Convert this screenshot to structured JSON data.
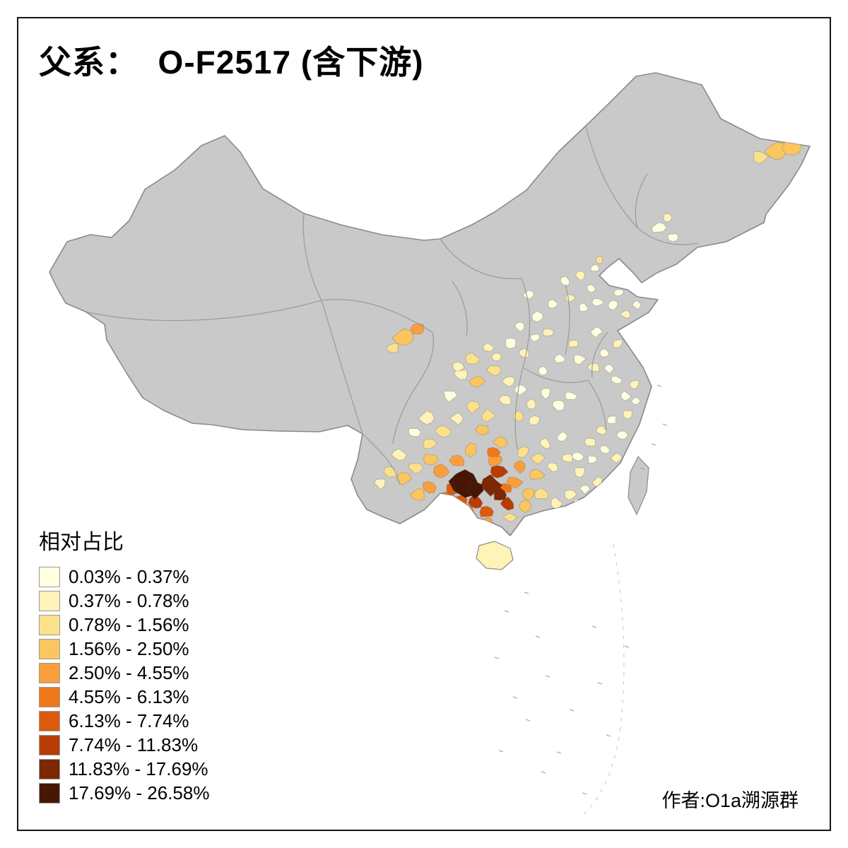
{
  "title": "父系：  O-F2517 (含下游)",
  "legend": {
    "title": "相对占比",
    "items": [
      {
        "label": "0.03% - 0.37%",
        "color": "#FFFFE0"
      },
      {
        "label": "0.37% - 0.78%",
        "color": "#FFF3B8"
      },
      {
        "label": "0.78% - 1.56%",
        "color": "#FCE18C"
      },
      {
        "label": "1.56% - 2.50%",
        "color": "#FBC55F"
      },
      {
        "label": "2.50% - 4.55%",
        "color": "#FA9E3C"
      },
      {
        "label": "4.55% - 6.13%",
        "color": "#F07818"
      },
      {
        "label": "6.13% - 7.74%",
        "color": "#DC5A0B"
      },
      {
        "label": "7.74% - 11.83%",
        "color": "#B83D05"
      },
      {
        "label": "11.83% - 17.69%",
        "color": "#7E2704"
      },
      {
        "label": "17.69% - 26.58%",
        "color": "#451704"
      }
    ]
  },
  "attribution": "作者:O1a溯源群",
  "map": {
    "no_data_color": "#C9C9C9",
    "boundary_color": "#8A8A8A",
    "inner_border_color": "#9B9B9B",
    "background": "#FFFFFF"
  },
  "chart_data": {
    "type": "heatmap",
    "subtype": "choropleth_map",
    "title": "父系： O-F2517 (含下游)",
    "legend_title": "相对占比",
    "unit": "%",
    "classes": [
      {
        "min": 0.03,
        "max": 0.37,
        "color": "#FFFFE0"
      },
      {
        "min": 0.37,
        "max": 0.78,
        "color": "#FFF3B8"
      },
      {
        "min": 0.78,
        "max": 1.56,
        "color": "#FCE18C"
      },
      {
        "min": 1.56,
        "max": 2.5,
        "color": "#FBC55F"
      },
      {
        "min": 2.5,
        "max": 4.55,
        "color": "#FA9E3C"
      },
      {
        "min": 4.55,
        "max": 6.13,
        "color": "#F07818"
      },
      {
        "min": 6.13,
        "max": 7.74,
        "color": "#DC5A0B"
      },
      {
        "min": 7.74,
        "max": 11.83,
        "color": "#B83D05"
      },
      {
        "min": 11.83,
        "max": 17.69,
        "color": "#7E2704"
      },
      {
        "min": 17.69,
        "max": 26.58,
        "color": "#451704"
      }
    ],
    "notes": "Map of China prefectures; highest concentrations (dark brown, up to 26.58%) cluster in the southwest around the Yunnan–Guizhou border, with moderate orange values in surrounding Sichuan, Guangxi and a patch in Gansu and the far northeast tip; pale yellow scatter across central, eastern and coastal China; most of the west and north is grey (no data)."
  }
}
